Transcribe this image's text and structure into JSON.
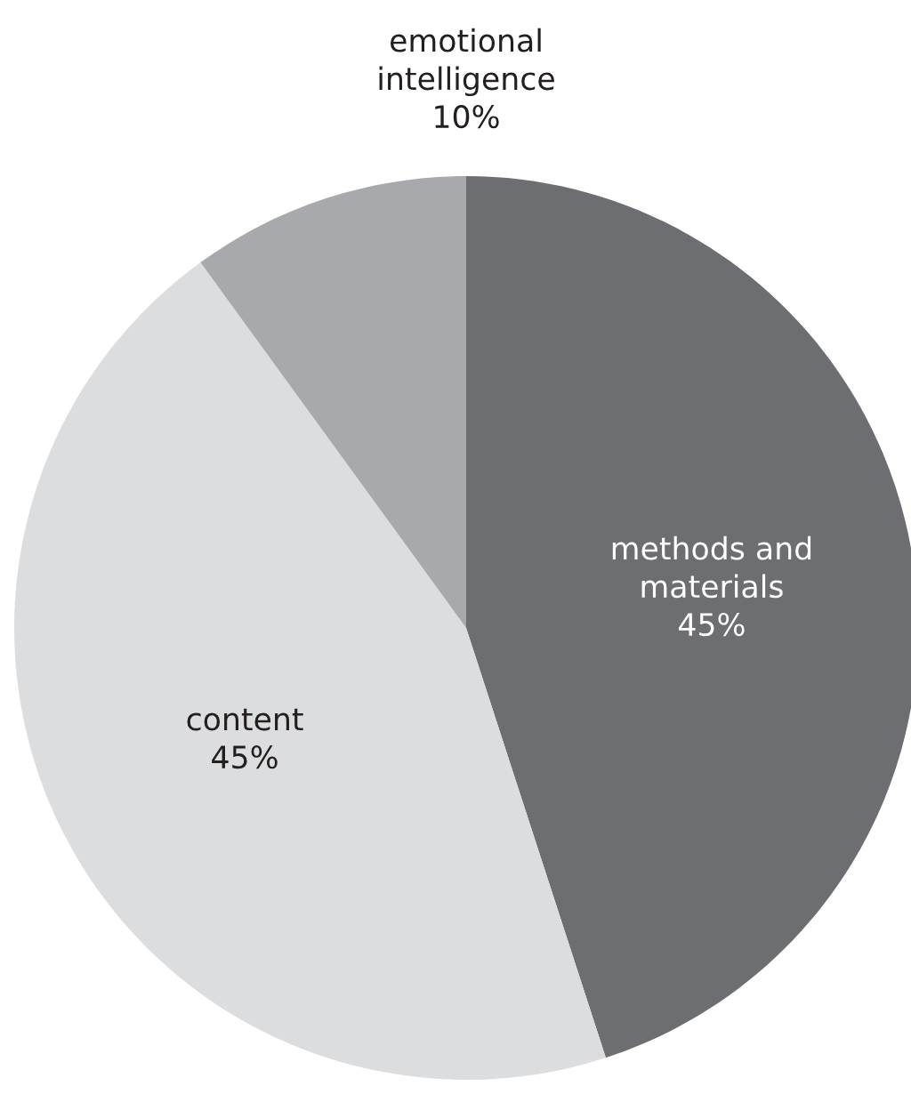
{
  "chart_data": {
    "type": "pie",
    "categories": [
      "methods and materials",
      "content",
      "emotional intelligence"
    ],
    "values": [
      45,
      45,
      10
    ],
    "colors": [
      "#6d6e71",
      "#dcdddf",
      "#a7a9ac"
    ],
    "value_labels": [
      "45%",
      "45%",
      "10%"
    ]
  }
}
